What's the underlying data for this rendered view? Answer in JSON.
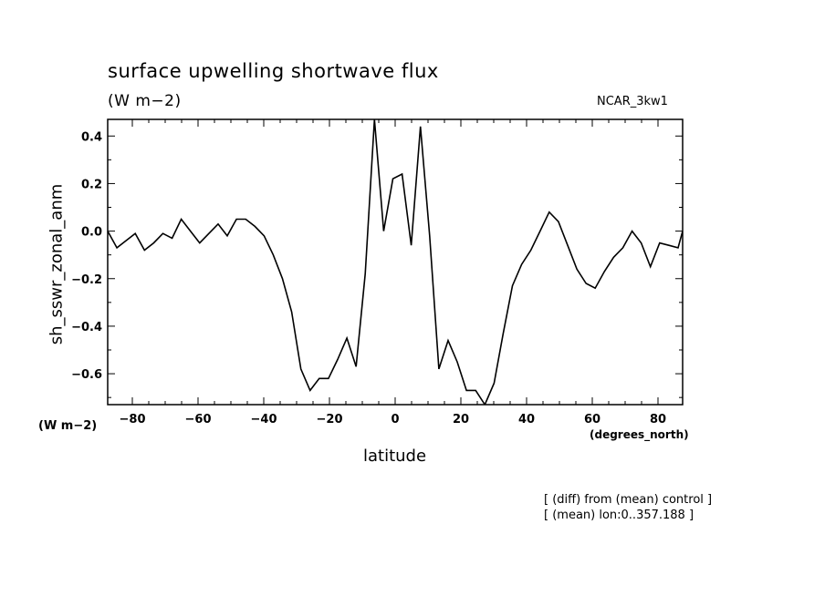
{
  "header": {
    "title": "surface upwelling shortwave flux",
    "units": "(W m−2)",
    "run": "NCAR_3kw1"
  },
  "axes": {
    "y_units": "(W m−2)",
    "x_units": "(degrees_north)",
    "xlabel": "latitude",
    "ylabel": "sh_sswr_zonal_anm"
  },
  "notes": [
    "[ (diff) from (mean) control ]",
    "[ (mean) lon:0..357.188 ]"
  ],
  "chart_data": {
    "type": "line",
    "title": "surface upwelling shortwave flux",
    "xlabel": "latitude",
    "ylabel": "sh_sswr_zonal_anm",
    "xlim": [
      -87.5,
      87.5
    ],
    "ylim": [
      -0.73,
      0.47
    ],
    "xticks": [
      -80,
      -60,
      -40,
      -20,
      0,
      20,
      40,
      60,
      80
    ],
    "xtick_labels": [
      "−80",
      "−60",
      "−40",
      "−20",
      "0",
      "20",
      "40",
      "60",
      "80"
    ],
    "yticks": [
      0.4,
      0.2,
      0.0,
      -0.2,
      -0.4,
      -0.6
    ],
    "ytick_labels": [
      "0.4",
      "0.2",
      "0.0",
      "−0.2",
      "−0.4",
      "−0.6"
    ],
    "grid": false,
    "series": [
      {
        "x": [
          -87.5,
          -84.7,
          -81.9,
          -79.1,
          -76.3,
          -73.5,
          -70.7,
          -67.9,
          -65.1,
          -62.3,
          -59.5,
          -56.7,
          -53.9,
          -51.1,
          -48.3,
          -45.5,
          -42.7,
          -39.9,
          -37.1,
          -34.3,
          -31.5,
          -28.7,
          -25.9,
          -23.1,
          -20.3,
          -17.5,
          -14.7,
          -11.9,
          -9.1,
          -6.3,
          -3.5,
          -0.7,
          2.1,
          4.9,
          7.7,
          10.5,
          13.3,
          16.1,
          18.9,
          21.7,
          24.5,
          27.3,
          30.1,
          32.9,
          35.7,
          38.5,
          41.3,
          44.1,
          46.9,
          49.7,
          52.5,
          55.3,
          58.1,
          60.9,
          63.7,
          66.5,
          69.3,
          72.1,
          74.9,
          77.7,
          80.5,
          83.3,
          86.1,
          87.5
        ],
        "y": [
          0.0,
          -0.07,
          -0.04,
          -0.01,
          -0.08,
          -0.05,
          -0.01,
          -0.03,
          0.05,
          0.0,
          -0.05,
          -0.01,
          0.03,
          -0.02,
          0.05,
          0.05,
          0.02,
          -0.02,
          -0.1,
          -0.2,
          -0.34,
          -0.58,
          -0.67,
          -0.62,
          -0.62,
          -0.54,
          -0.45,
          -0.57,
          -0.18,
          0.47,
          0.0,
          0.22,
          0.24,
          -0.06,
          0.44,
          -0.02,
          -0.58,
          -0.46,
          -0.55,
          -0.67,
          -0.67,
          -0.73,
          -0.64,
          -0.43,
          -0.23,
          -0.14,
          -0.08,
          0.0,
          0.08,
          0.04,
          -0.06,
          -0.16,
          -0.22,
          -0.24,
          -0.17,
          -0.11,
          -0.07,
          0.0,
          -0.05,
          -0.15,
          -0.05,
          -0.06,
          -0.07,
          0.0
        ]
      }
    ]
  }
}
